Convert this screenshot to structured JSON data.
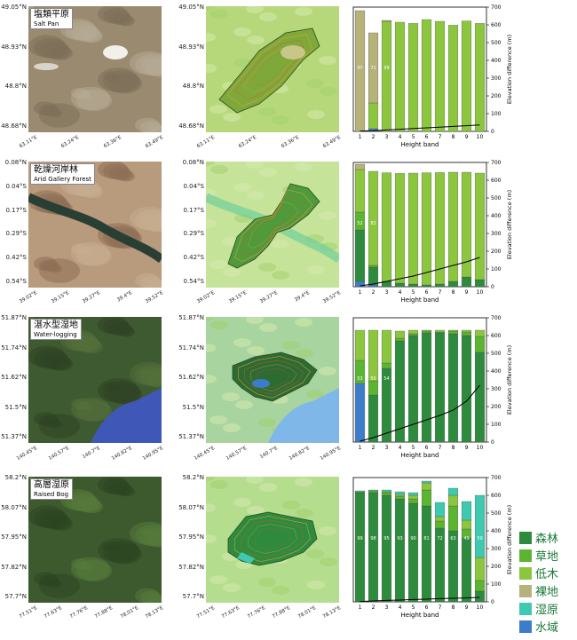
{
  "colors": {
    "forest": "#2e8b3e",
    "grassland": "#5cb531",
    "shrub": "#8cc63f",
    "bare": "#b5b27a",
    "wetland": "#3ec9b0",
    "water": "#3d7cc9"
  },
  "legend": [
    {
      "label": "森林",
      "color": "#2e8b3e"
    },
    {
      "label": "草地",
      "color": "#5cb531"
    },
    {
      "label": "低木",
      "color": "#8cc63f"
    },
    {
      "label": "裸地",
      "color": "#b5b27a"
    },
    {
      "label": "湿原",
      "color": "#3ec9b0"
    },
    {
      "label": "水域",
      "color": "#3d7cc9"
    }
  ],
  "rows": [
    {
      "title_cn": "塩類平原",
      "title_en": "Salt Pan",
      "lat_ticks": [
        "49.05°N",
        "48.93°N",
        "48.8°N",
        "48.68°N"
      ],
      "lon_ticks": [
        "63.11°E",
        "63.24°E",
        "63.36°E",
        "63.49°E"
      ],
      "map_lat_ticks": [
        "49.05°N",
        "48.93°N",
        "48.8°N",
        "48.68°N"
      ],
      "map_lon_ticks": [
        "63.11°E",
        "63.24°E",
        "63.36°E",
        "63.49°E"
      ]
    },
    {
      "title_cn": "乾燥河岸林",
      "title_en": "Arid Gallery Forest",
      "lat_ticks": [
        "0.08°N",
        "0.04°S",
        "0.17°S",
        "0.29°S",
        "0.42°S",
        "0.54°S"
      ],
      "lon_ticks": [
        "39.02°E",
        "39.15°E",
        "39.27°E",
        "39.4°E",
        "39.52°E"
      ],
      "map_lat_ticks": [
        "0.08°N",
        "0.04°S",
        "0.17°S",
        "0.29°S",
        "0.42°S",
        "0.54°S"
      ],
      "map_lon_ticks": [
        "39.02°E",
        "39.15°E",
        "39.27°E",
        "39.4°E",
        "39.52°E"
      ]
    },
    {
      "title_cn": "湛水型湿地",
      "title_en": "Water-logging",
      "lat_ticks": [
        "51.87°N",
        "51.74°N",
        "51.62°N",
        "51.5°N",
        "51.37°N"
      ],
      "lon_ticks": [
        "140.45°E",
        "140.57°E",
        "140.7°E",
        "140.82°E",
        "140.95°E"
      ],
      "map_lat_ticks": [
        "51.87°N",
        "51.74°N",
        "51.62°N",
        "51.5°N",
        "51.37°N"
      ],
      "map_lon_ticks": [
        "140.45°E",
        "140.57°E",
        "140.7°E",
        "140.82°E",
        "140.95°E"
      ]
    },
    {
      "title_cn": "高層湿原",
      "title_en": "Raised Bog",
      "lat_ticks": [
        "58.2°N",
        "58.07°N",
        "57.95°N",
        "57.82°N",
        "57.7°N"
      ],
      "lon_ticks": [
        "77.51°E",
        "77.63°E",
        "77.76°E",
        "77.88°E",
        "78.01°E",
        "78.13°E"
      ],
      "map_lat_ticks": [
        "58.2°N",
        "58.07°N",
        "57.95°N",
        "57.82°N",
        "57.7°N"
      ],
      "map_lon_ticks": [
        "77.51°E",
        "77.63°E",
        "77.76°E",
        "77.88°E",
        "78.01°E",
        "78.13°E"
      ]
    }
  ],
  "chart_data": [
    {
      "type": "bar",
      "stacked": true,
      "xlabel": "Height band",
      "ylabel": "Elevation difference (m)",
      "categories": [
        "1",
        "2",
        "3",
        "4",
        "5",
        "6",
        "7",
        "8",
        "9",
        "10"
      ],
      "ylim": [
        0,
        700
      ],
      "yticks": [
        0,
        100,
        200,
        300,
        400,
        500,
        600,
        700
      ],
      "series": [
        {
          "name": "forest",
          "values": [
            0,
            0,
            0,
            0,
            0,
            0,
            0,
            0,
            0,
            0
          ]
        },
        {
          "name": "grassland",
          "values": [
            0,
            0,
            0,
            0,
            0,
            0,
            0,
            0,
            0,
            0
          ]
        },
        {
          "name": "shrub",
          "values": [
            0,
            145,
            620,
            615,
            608,
            630,
            620,
            598,
            622,
            608
          ]
        },
        {
          "name": "bare",
          "values": [
            680,
            395,
            5,
            0,
            0,
            0,
            0,
            0,
            0,
            0
          ]
        },
        {
          "name": "wetland",
          "values": [
            0,
            0,
            0,
            0,
            0,
            0,
            0,
            0,
            0,
            0
          ]
        },
        {
          "name": "water",
          "values": [
            0,
            15,
            0,
            0,
            0,
            0,
            0,
            0,
            0,
            0
          ]
        }
      ],
      "bar_labels": [
        {
          "bar": 1,
          "text": "97"
        },
        {
          "bar": 2,
          "text": "71"
        },
        {
          "bar": 3,
          "text": "99"
        }
      ],
      "line": [
        2,
        4,
        8,
        12,
        16,
        20,
        24,
        28,
        32,
        36
      ]
    },
    {
      "type": "bar",
      "stacked": true,
      "xlabel": "Height band",
      "ylabel": "Elevation difference (m)",
      "categories": [
        "1",
        "2",
        "3",
        "4",
        "5",
        "6",
        "7",
        "8",
        "9",
        "10"
      ],
      "ylim": [
        0,
        700
      ],
      "yticks": [
        0,
        100,
        200,
        300,
        400,
        500,
        600,
        700
      ],
      "series": [
        {
          "name": "forest",
          "values": [
            290,
            100,
            30,
            20,
            15,
            10,
            15,
            30,
            55,
            40
          ]
        },
        {
          "name": "grassland",
          "values": [
            100,
            10,
            0,
            0,
            0,
            0,
            0,
            0,
            0,
            0
          ]
        },
        {
          "name": "shrub",
          "values": [
            240,
            530,
            612,
            618,
            625,
            632,
            628,
            615,
            590,
            600
          ]
        },
        {
          "name": "bare",
          "values": [
            30,
            0,
            0,
            0,
            0,
            0,
            0,
            0,
            0,
            0
          ]
        },
        {
          "name": "wetland",
          "values": [
            0,
            0,
            0,
            0,
            0,
            0,
            0,
            0,
            0,
            0
          ]
        },
        {
          "name": "water",
          "values": [
            30,
            10,
            0,
            0,
            0,
            0,
            0,
            0,
            0,
            0
          ]
        }
      ],
      "bar_labels": [
        {
          "bar": 1,
          "text": "52"
        },
        {
          "bar": 2,
          "text": "83"
        }
      ],
      "line": [
        5,
        15,
        30,
        45,
        60,
        80,
        100,
        120,
        140,
        165
      ]
    },
    {
      "type": "bar",
      "stacked": true,
      "xlabel": "Height band",
      "ylabel": "Elevation difference (m)",
      "categories": [
        "1",
        "2",
        "3",
        "4",
        "5",
        "6",
        "7",
        "8",
        "9",
        "10"
      ],
      "ylim": [
        0,
        700
      ],
      "yticks": [
        0,
        100,
        200,
        300,
        400,
        500,
        600,
        700
      ],
      "series": [
        {
          "name": "forest",
          "values": [
            0,
            265,
            415,
            570,
            600,
            615,
            615,
            610,
            600,
            505
          ]
        },
        {
          "name": "grassland",
          "values": [
            130,
            80,
            30,
            15,
            10,
            10,
            5,
            15,
            20,
            90
          ]
        },
        {
          "name": "shrub",
          "values": [
            170,
            285,
            185,
            40,
            20,
            5,
            10,
            5,
            10,
            35
          ]
        },
        {
          "name": "bare",
          "values": [
            0,
            0,
            0,
            0,
            0,
            0,
            0,
            0,
            0,
            0
          ]
        },
        {
          "name": "wetland",
          "values": [
            0,
            0,
            0,
            0,
            0,
            0,
            0,
            0,
            0,
            0
          ]
        },
        {
          "name": "water",
          "values": [
            330,
            0,
            0,
            0,
            0,
            0,
            0,
            0,
            0,
            0
          ]
        }
      ],
      "bar_labels": [
        {
          "bar": 1,
          "text": "53"
        },
        {
          "bar": 2,
          "text": "55"
        },
        {
          "bar": 3,
          "text": "54"
        }
      ],
      "line": [
        5,
        25,
        50,
        75,
        100,
        125,
        150,
        180,
        230,
        320
      ]
    },
    {
      "type": "bar",
      "stacked": true,
      "xlabel": "Height band",
      "ylabel": "Elevation difference (m)",
      "categories": [
        "1",
        "2",
        "3",
        "4",
        "5",
        "6",
        "7",
        "8",
        "9",
        "10"
      ],
      "ylim": [
        0,
        700
      ],
      "yticks": [
        0,
        100,
        200,
        300,
        400,
        500,
        600,
        700
      ],
      "series": [
        {
          "name": "forest",
          "values": [
            615,
            615,
            600,
            580,
            555,
            540,
            415,
            400,
            360,
            60
          ]
        },
        {
          "name": "grassland",
          "values": [
            5,
            10,
            15,
            15,
            25,
            90,
            40,
            140,
            50,
            60
          ]
        },
        {
          "name": "shrub",
          "values": [
            0,
            0,
            5,
            10,
            20,
            40,
            25,
            60,
            50,
            130
          ]
        },
        {
          "name": "bare",
          "values": [
            0,
            0,
            0,
            0,
            0,
            0,
            0,
            0,
            0,
            0
          ]
        },
        {
          "name": "wetland",
          "values": [
            5,
            5,
            10,
            15,
            15,
            10,
            80,
            40,
            105,
            350
          ]
        },
        {
          "name": "water",
          "values": [
            0,
            0,
            0,
            0,
            0,
            0,
            0,
            0,
            0,
            0
          ]
        }
      ],
      "bar_labels": [
        {
          "bar": 1,
          "text": "99"
        },
        {
          "bar": 2,
          "text": "98"
        },
        {
          "bar": 3,
          "text": "95"
        },
        {
          "bar": 4,
          "text": "93"
        },
        {
          "bar": 5,
          "text": "90"
        },
        {
          "bar": 6,
          "text": "81"
        },
        {
          "bar": 7,
          "text": "72"
        },
        {
          "bar": 8,
          "text": "63"
        },
        {
          "bar": 9,
          "text": "49"
        },
        {
          "bar": 10,
          "text": "59"
        }
      ],
      "line": [
        2,
        5,
        8,
        10,
        13,
        15,
        18,
        20,
        22,
        25
      ]
    }
  ]
}
